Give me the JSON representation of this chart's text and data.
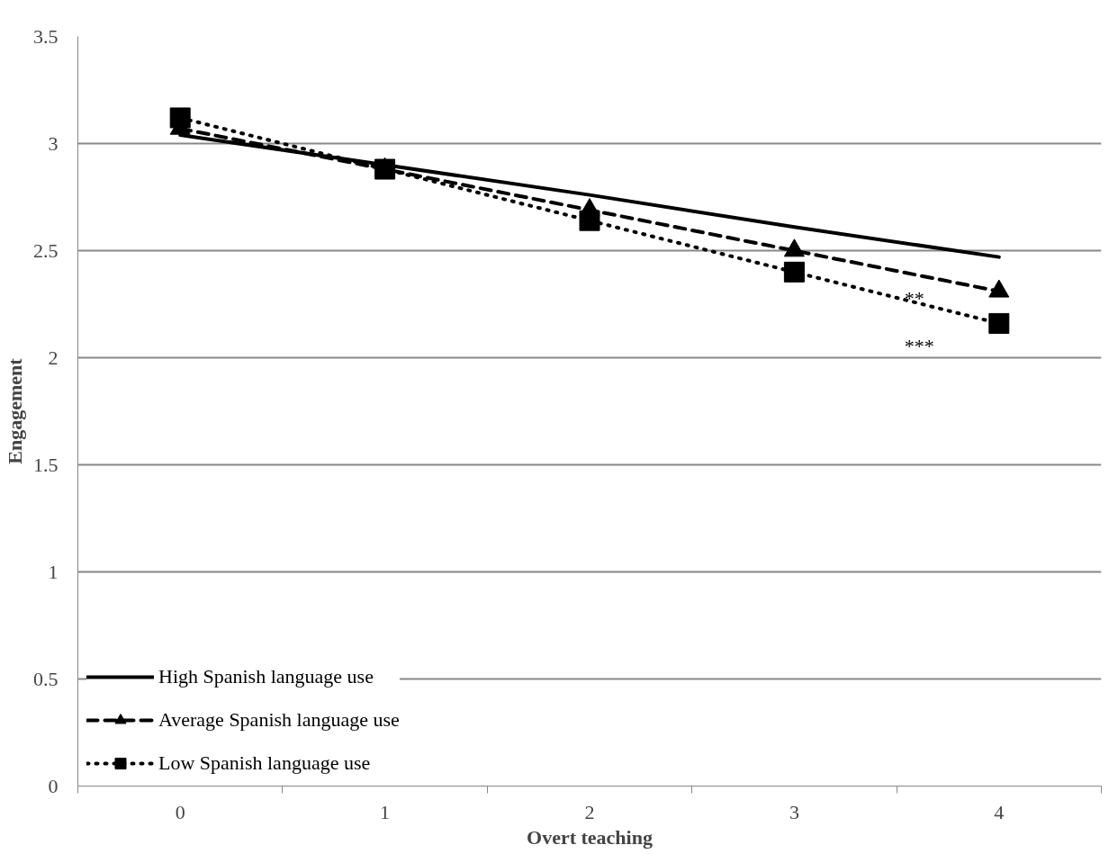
{
  "chart_data": {
    "type": "line",
    "xlabel": "Overt teaching",
    "ylabel": "Engagement",
    "categories": [
      "0",
      "1",
      "2",
      "3",
      "4"
    ],
    "ylim": [
      0,
      3.5
    ],
    "yticks": [
      0,
      0.5,
      1,
      1.5,
      2,
      2.5,
      3,
      3.5
    ],
    "grid": "y",
    "legend": "bottom left",
    "series": [
      {
        "name": "High Spanish language use",
        "color": "#000000",
        "values": [
          3.04,
          2.9,
          2.76,
          2.61,
          2.47
        ],
        "line_style": "solid",
        "marker": "none"
      },
      {
        "name": "Average Spanish language use",
        "color": "#000000",
        "values": [
          3.07,
          2.88,
          2.69,
          2.5,
          2.31
        ],
        "line_style": "dashed",
        "marker": "triangle"
      },
      {
        "name": "Low Spanish language use",
        "color": "#000000",
        "values": [
          3.12,
          2.88,
          2.64,
          2.4,
          2.16
        ],
        "line_style": "dotted",
        "marker": "square"
      }
    ],
    "annotations": [
      "**",
      "***"
    ]
  }
}
